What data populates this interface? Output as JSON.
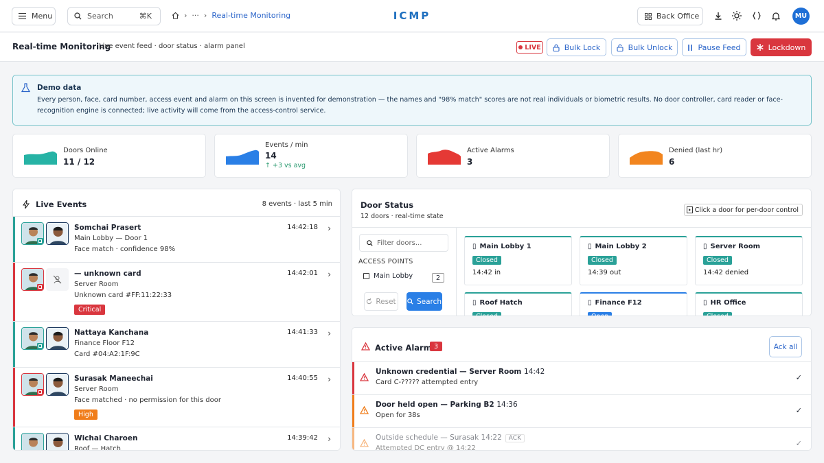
{
  "topbar": {
    "menu_label": "Menu",
    "search_placeholder": "Search",
    "search_shortcut": "⌘K",
    "breadcrumb": {
      "ellipsis": "···",
      "current": "Real-time Monitoring"
    },
    "brand": "ICMP",
    "back_office_label": "Back Office",
    "icons": [
      "download-icon",
      "sun-icon",
      "braces-icon",
      "bell-icon"
    ],
    "avatar_initials": "MU"
  },
  "subbar": {
    "title": "Real-time Monitoring",
    "subtitle": "Live event feed · door status · alarm panel",
    "live_label": "LIVE",
    "buttons": {
      "bulk_lock": "Bulk Lock",
      "bulk_unlock": "Bulk Unlock",
      "pause_feed": "Pause Feed",
      "lockdown": "Lockdown"
    }
  },
  "demo": {
    "title": "Demo data",
    "text": "Every person, face, card number, access event and alarm on this screen is invented for demonstration — the names and \"98% match\" scores are not real individuals or biometric results. No door controller, card reader or face-recognition engine is connected; live activity will come from the access-control service."
  },
  "stats": [
    {
      "label": "Doors Online",
      "value": "11 / 12",
      "color": "#26b3a5"
    },
    {
      "label": "Events / min",
      "value": "14",
      "trend": "↑ +3 vs avg",
      "color": "#2a7fe6"
    },
    {
      "label": "Active Alarms",
      "value": "3",
      "color": "#e53935"
    },
    {
      "label": "Denied (last hr)",
      "value": "6",
      "color": "#f2851f"
    }
  ],
  "events": {
    "title": "Live Events",
    "meta": "8 events · last 5 min",
    "rows": [
      {
        "name": "Somchai Prasert",
        "line2": "Main Lobby — Door 1",
        "line3": "Face match · confidence 98%",
        "time": "14:42:18",
        "tag": "",
        "status": "ok"
      },
      {
        "name": "— unknown card",
        "line2": "Server Room",
        "line3": "Unknown card #FF:11:22:33",
        "time": "14:42:01",
        "tag": "Critical",
        "status": "critical"
      },
      {
        "name": "Nattaya Kanchana",
        "line2": "Finance Floor F12",
        "line3": "Card #04:A2:1F:9C",
        "time": "14:41:33",
        "tag": "",
        "status": "ok"
      },
      {
        "name": "Surasak Maneechai",
        "line2": "Server Room",
        "line3": "Face matched · no permission for this door",
        "time": "14:40:55",
        "tag": "High",
        "status": "high"
      },
      {
        "name": "Wichai Charoen",
        "line2": "Roof — Hatch",
        "line3": "",
        "time": "14:39:42",
        "tag": "",
        "status": "ok"
      }
    ]
  },
  "doors": {
    "title": "Door Status",
    "subtitle": "12 doors · real-time state",
    "hint": "Click a door for per-door control",
    "filter_placeholder": "Filter doors...",
    "access_points_label": "ACCESS POINTS",
    "access_points": [
      {
        "label": "Main Lobby",
        "count": "2"
      }
    ],
    "reset_label": "Reset",
    "search_label": "Search",
    "cards": [
      {
        "name": "Main Lobby 1",
        "state": "Closed",
        "detail": "14:42 in"
      },
      {
        "name": "Main Lobby 2",
        "state": "Closed",
        "detail": "14:39 out"
      },
      {
        "name": "Server Room",
        "state": "Closed",
        "detail": "14:42 denied"
      },
      {
        "name": "Roof Hatch",
        "state": "Closed",
        "detail": ""
      },
      {
        "name": "Finance F12",
        "state": "Open",
        "detail": ""
      },
      {
        "name": "HR Office",
        "state": "Closed",
        "detail": ""
      }
    ]
  },
  "alarms": {
    "title": "Active Alarms",
    "count": "3",
    "ack_all_label": "Ack all",
    "rows": [
      {
        "title": "Unknown credential — Server Room",
        "time": "14:42",
        "detail": "Card C-????? attempted entry",
        "severity": "critical",
        "acked": ""
      },
      {
        "title": "Door held open — Parking B2",
        "time": "14:36",
        "detail": "Open for 38s",
        "severity": "warning",
        "acked": ""
      },
      {
        "title": "Outside schedule — Surasak",
        "time": "14:22",
        "detail": "Attempted DC entry @ 14:22",
        "severity": "warning",
        "acked": "ACK"
      }
    ]
  },
  "colors": {
    "accent": "#2a64c9",
    "danger": "#d9363e",
    "teal": "#2aa198",
    "orange": "#f07d1a"
  }
}
